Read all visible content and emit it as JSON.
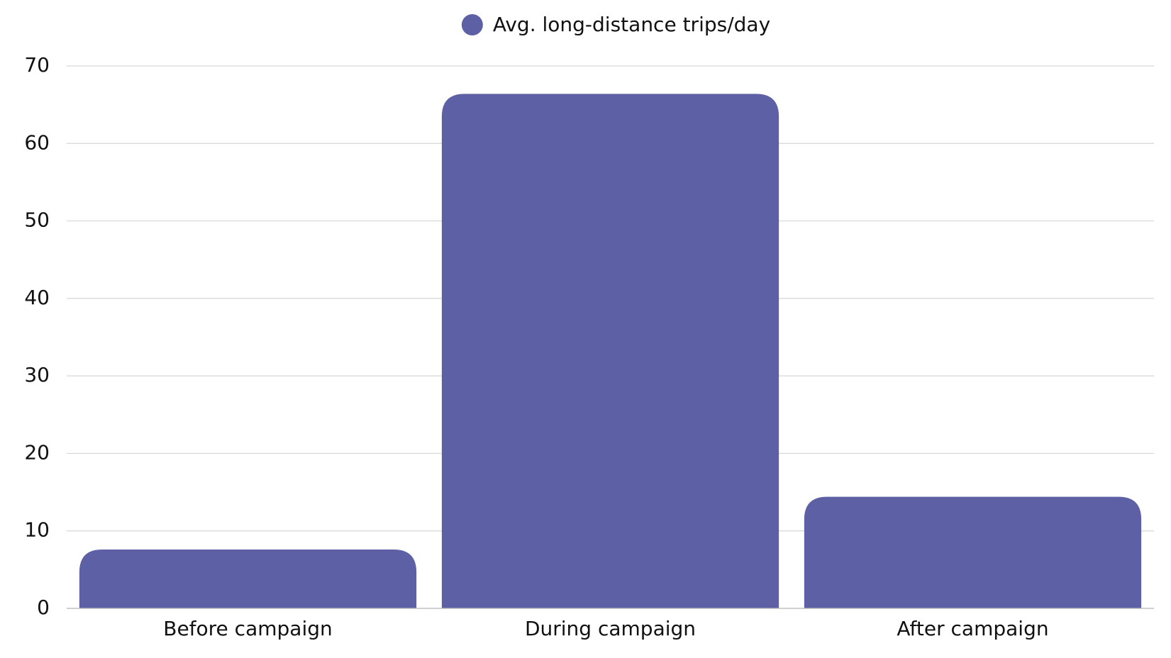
{
  "chart_data": {
    "type": "bar",
    "categories": [
      "Before campaign",
      "During campaign",
      "After campaign"
    ],
    "series": [
      {
        "name": "Avg. long-distance trips/day",
        "color": "#5d60a4",
        "values": [
          7.6,
          66.4,
          14.4
        ]
      }
    ],
    "ylim": [
      0,
      70
    ],
    "yticks": [
      0,
      10,
      20,
      30,
      40,
      50,
      60,
      70
    ],
    "grid": true,
    "legend": "top"
  }
}
